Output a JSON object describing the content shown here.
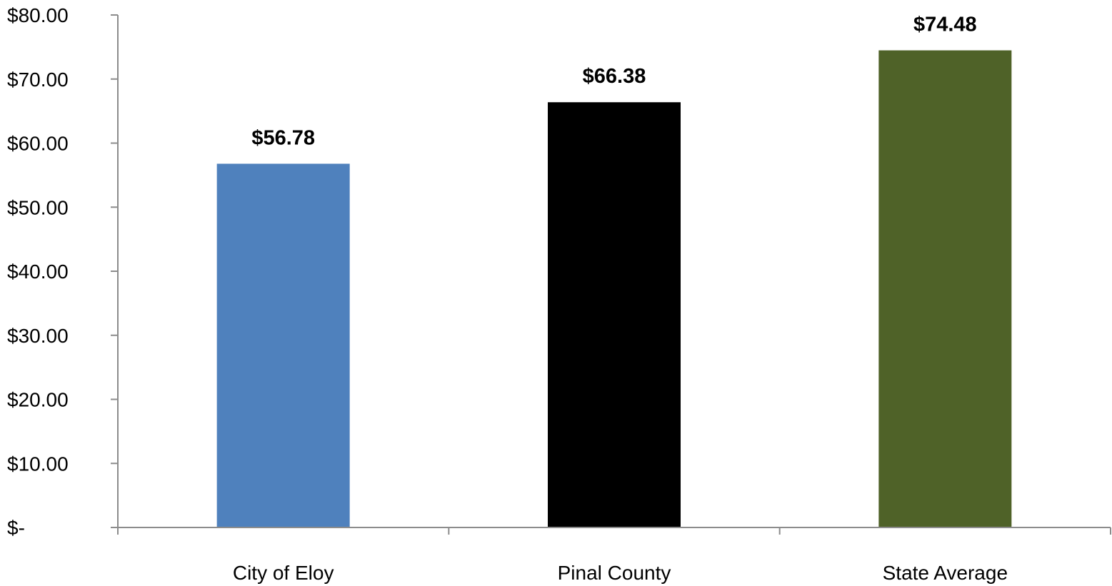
{
  "chart_data": {
    "type": "bar",
    "title": "",
    "xlabel": "",
    "ylabel": "",
    "categories": [
      "City of Eloy",
      "Pinal County",
      "State Average"
    ],
    "values": [
      56.78,
      66.38,
      74.48
    ],
    "data_labels": [
      "$56.78",
      "$66.38",
      "$74.48"
    ],
    "bar_colors": [
      "#4f81bd",
      "#000000",
      "#4f6228"
    ],
    "ylim": [
      0,
      80
    ],
    "y_ticks": [
      0,
      10,
      20,
      30,
      40,
      50,
      60,
      70,
      80
    ],
    "y_tick_labels": [
      "$-",
      "$10.00",
      "$20.00",
      "$30.00",
      "$40.00",
      "$50.00",
      "$60.00",
      "$70.00",
      "$80.00"
    ],
    "grid": false,
    "legend": "none"
  }
}
